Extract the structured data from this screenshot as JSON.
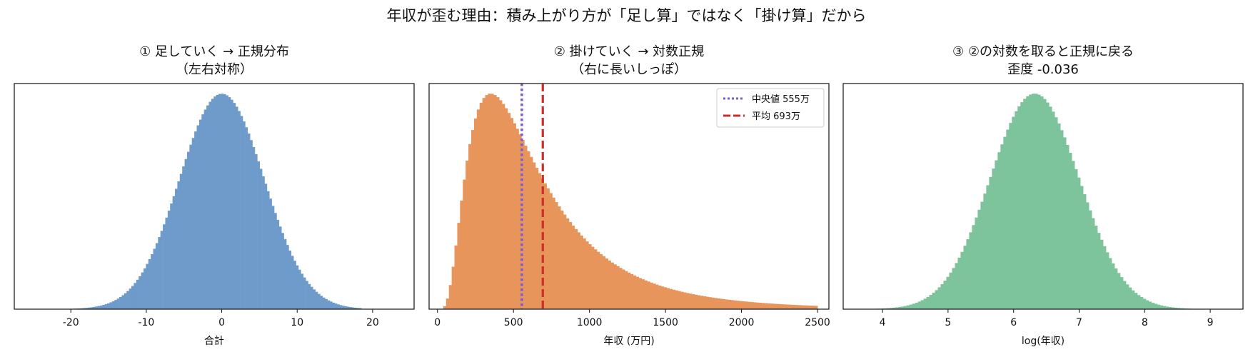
{
  "suptitle": "年収が歪む理由：積み上がり方が「足し算」ではなく「掛け算」だから",
  "chart_data": [
    {
      "type": "bar",
      "subtype": "histogram",
      "title_line1": "① 足していく → 正規分布",
      "title_line2": "（左右対称）",
      "xlabel": "合計",
      "xlim": [
        -27.5,
        25.5
      ],
      "xticks": [
        -20,
        -10,
        0,
        10,
        20
      ],
      "xtick_labels": [
        "-20",
        "-10",
        "0",
        "10",
        "20"
      ],
      "yticks_visible": false,
      "color": "#6f9bcb",
      "distribution": {
        "kind": "normal",
        "mean": 0,
        "sd": 5.6,
        "min": -20,
        "max": 18.5,
        "bins": 120
      }
    },
    {
      "type": "bar",
      "subtype": "histogram",
      "title_line1": "② 掛けていく → 対数正規",
      "title_line2": "（右に長いしっぽ）",
      "xlabel": "年収 (万円)",
      "xlim": [
        -55,
        2575
      ],
      "xticks": [
        0,
        500,
        1000,
        1500,
        2000,
        2500
      ],
      "xtick_labels": [
        "0",
        "500",
        "1000",
        "1500",
        "2000",
        "2500"
      ],
      "yticks_visible": false,
      "color": "#e8955c",
      "distribution": {
        "kind": "lognormal",
        "mu": 6.32,
        "sigma": 0.68,
        "min": 20,
        "max": 2500,
        "bins": 135
      },
      "vlines": [
        {
          "label": "中央値 555万",
          "x": 555,
          "color": "#7b5ad8",
          "style": "dotted"
        },
        {
          "label": "平均 693万",
          "x": 693,
          "color": "#cc2f2a",
          "style": "dashed"
        }
      ],
      "legend_position": "upper right"
    },
    {
      "type": "bar",
      "subtype": "histogram",
      "title_line1": "③ ②の対数を取ると正規に戻る",
      "title_line2": "歪度 -0.036",
      "xlabel": "log(年収)",
      "xlim": [
        3.4,
        9.5
      ],
      "xticks": [
        4,
        5,
        6,
        7,
        8,
        9
      ],
      "xtick_labels": [
        "4",
        "5",
        "6",
        "7",
        "8",
        "9"
      ],
      "yticks_visible": false,
      "color": "#7dc39c",
      "distribution": {
        "kind": "normal",
        "mean": 6.32,
        "sd": 0.68,
        "min": 3.8,
        "max": 8.8,
        "bins": 115
      }
    }
  ]
}
